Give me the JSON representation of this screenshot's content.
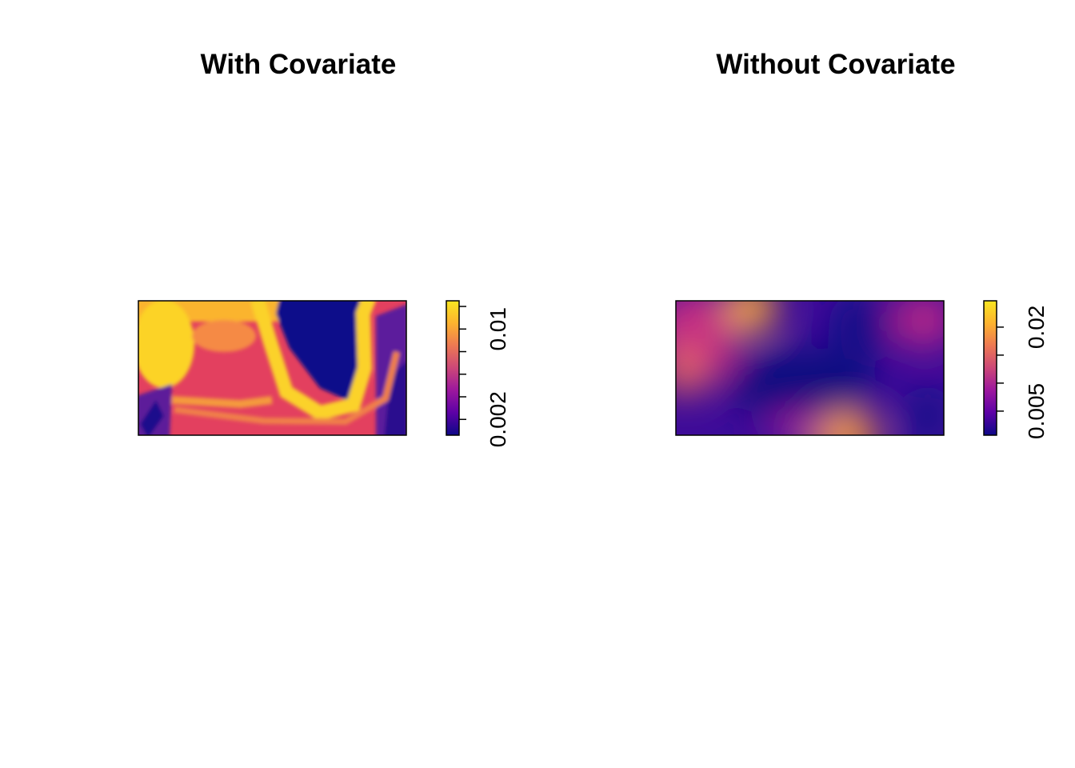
{
  "chart_data": [
    {
      "type": "raster",
      "title": "With Covariate",
      "colormap": [
        "#0D0887",
        "#5C01A6",
        "#9C179E",
        "#CC4778",
        "#ED7953",
        "#FDB32F",
        "#F9E621"
      ],
      "ylim": [
        0.0006,
        0.0125
      ],
      "yticks": [
        0.002,
        0.004,
        0.006,
        0.008,
        0.01,
        0.012
      ]
    },
    {
      "type": "raster",
      "title": "Without Covariate",
      "colormap": [
        "#0D0887",
        "#5C01A6",
        "#9C179E",
        "#CC4778",
        "#ED7953",
        "#FDB32F",
        "#F9E621"
      ],
      "ylim": [
        0.0007,
        0.0247
      ],
      "yticks": [
        0.005,
        0.01,
        0.015,
        0.02
      ]
    }
  ]
}
